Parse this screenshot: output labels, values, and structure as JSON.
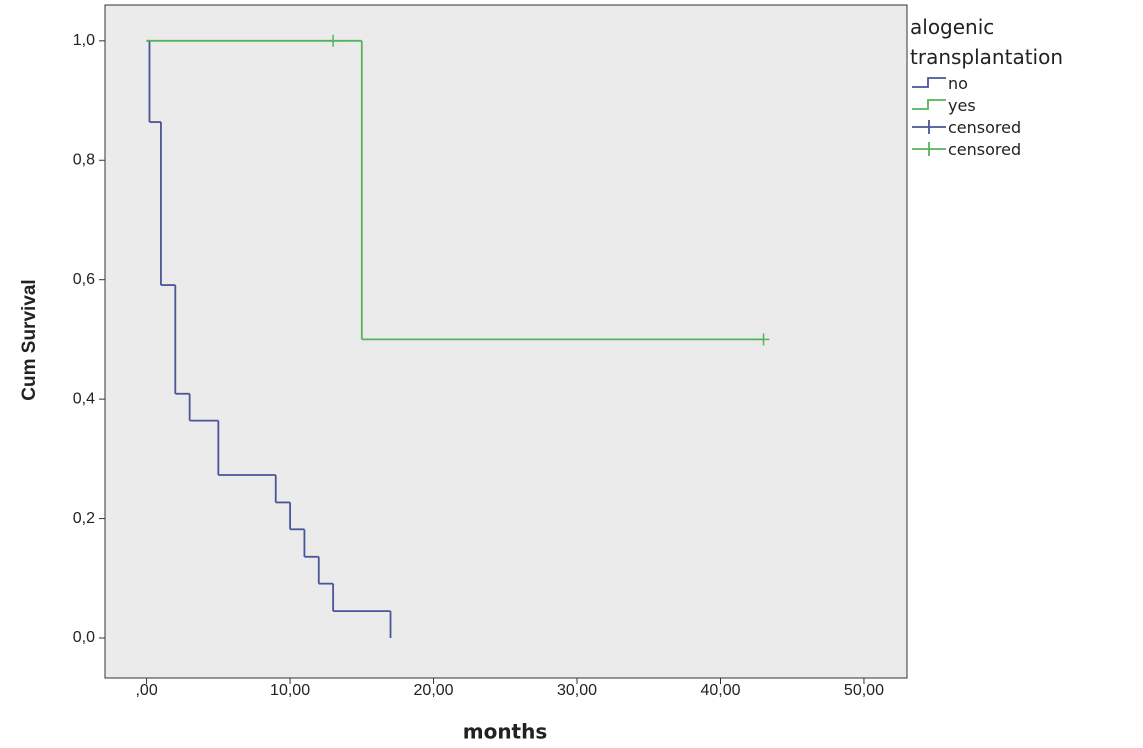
{
  "chart_data": {
    "type": "step",
    "x_label": "months",
    "y_label": "Cum Survival",
    "legend_title": "alogenic transplantation",
    "background": "#ebebeb",
    "xlim": [
      -2.9,
      53
    ],
    "ylim": [
      -0.067,
      1.06
    ],
    "xticks": [
      {
        "value": 0,
        "label": ",00"
      },
      {
        "value": 10,
        "label": "10,00"
      },
      {
        "value": 20,
        "label": "20,00"
      },
      {
        "value": 30,
        "label": "30,00"
      },
      {
        "value": 40,
        "label": "40,00"
      },
      {
        "value": 50,
        "label": "50,00"
      }
    ],
    "yticks": [
      {
        "value": 0,
        "label": "0,0"
      },
      {
        "value": 0.2,
        "label": "0,2"
      },
      {
        "value": 0.4,
        "label": "0,4"
      },
      {
        "value": 0.6,
        "label": "0,6"
      },
      {
        "value": 0.8,
        "label": "0,8"
      },
      {
        "value": 1,
        "label": "1,0"
      }
    ],
    "series": [
      {
        "name": "no",
        "color": "#4a5499",
        "x": [
          0,
          0.2,
          1,
          2,
          3,
          5,
          9,
          10,
          11,
          12,
          13,
          17
        ],
        "values": [
          1,
          0.864,
          0.591,
          0.409,
          0.364,
          0.273,
          0.227,
          0.182,
          0.136,
          0.091,
          0.045,
          0
        ]
      },
      {
        "name": "yes",
        "color": "#55b35a",
        "x": [
          0,
          15,
          43
        ],
        "values": [
          1,
          0.5,
          0.5
        ]
      },
      {
        "name": "censored",
        "color": "#4a5499",
        "censored": true,
        "x": [],
        "values": []
      },
      {
        "name": "censored",
        "color": "#55b35a",
        "censored": true,
        "x": [
          13,
          43
        ],
        "values": [
          1,
          0.5
        ]
      }
    ]
  }
}
